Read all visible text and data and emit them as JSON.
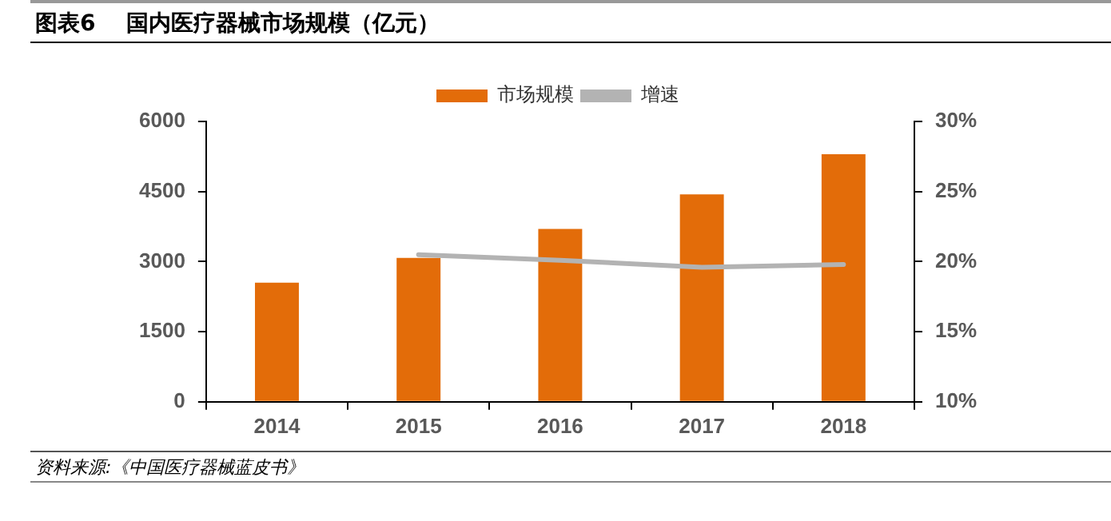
{
  "chart_data": {
    "type": "bar",
    "title": "图表6    国内医疗器械市场规模（亿元）",
    "categories": [
      "2014",
      "2015",
      "2016",
      "2017",
      "2018"
    ],
    "series": [
      {
        "name": "市场规模",
        "color": "#e36c09",
        "values": [
          2550,
          3080,
          3700,
          4440,
          5300
        ]
      },
      {
        "name": "增速",
        "type": "line",
        "axis": "y2",
        "color": "#b3b3b3",
        "values": [
          null,
          20.5,
          20.1,
          19.6,
          19.8
        ]
      }
    ],
    "ylim": [
      0,
      6000
    ],
    "yticks": [
      0,
      1500,
      3000,
      4500,
      6000
    ],
    "y2lim": [
      10,
      30
    ],
    "y2ticks": [
      {
        "value": 10,
        "label": "10%"
      },
      {
        "value": 15,
        "label": "15%"
      },
      {
        "value": 20,
        "label": "20%"
      },
      {
        "value": 25,
        "label": "25%"
      },
      {
        "value": 30,
        "label": "30%"
      }
    ],
    "grid": false,
    "legend": "top",
    "marker": "none",
    "annotations": [
      "资料来源:《中国医疗器械蓝皮书》"
    ]
  }
}
